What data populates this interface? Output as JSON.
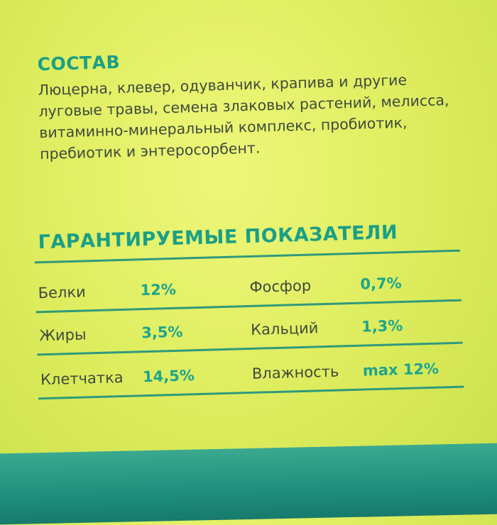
{
  "composition": {
    "title": "СОСТАВ",
    "text": "Люцерна, клевер, одуванчик, крапива и другие луговые травы, семена злаковых растений, мелисса, витаминно-минеральный комплекс, пробиотик, пребиотик и энтеросорбент."
  },
  "indicators": {
    "title": "ГАРАНТИРУЕМЫЕ ПОКАЗАТЕЛИ",
    "rows": [
      {
        "left_label": "Белки",
        "left_value": "12%",
        "right_label": "Фосфор",
        "right_value": "0,7%"
      },
      {
        "left_label": "Жиры",
        "left_value": "3,5%",
        "right_label": "Кальций",
        "right_value": "1,3%"
      },
      {
        "left_label": "Клетчатка",
        "left_value": "14,5%",
        "right_label": "Влажность",
        "right_value": "max 12%"
      }
    ]
  },
  "colors": {
    "background": "#e4f06a",
    "accent": "#1a9f86",
    "band": "#1f8f7d",
    "text": "#3f4a3c"
  }
}
